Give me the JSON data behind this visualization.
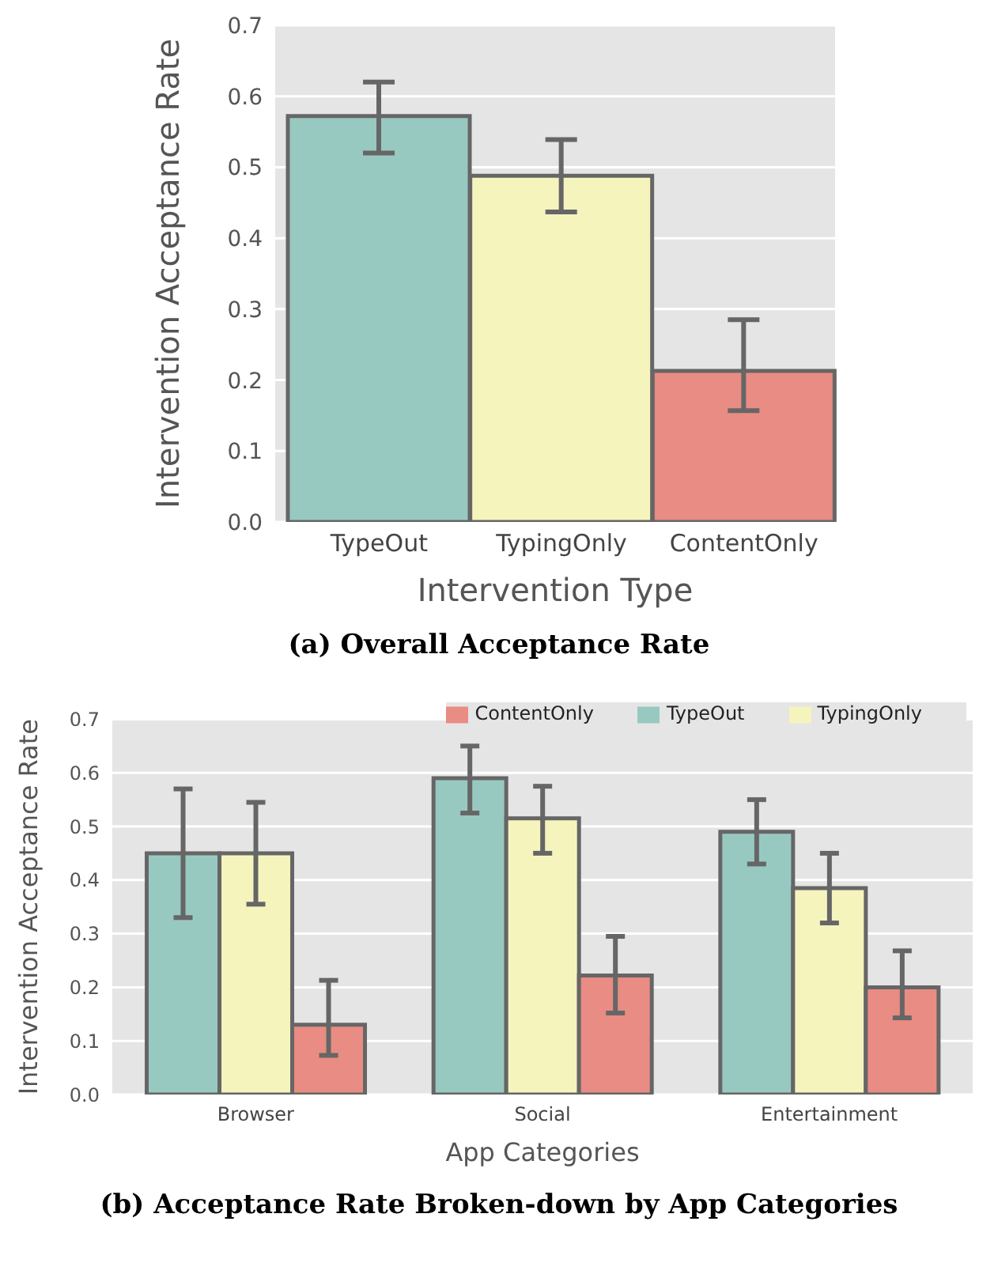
{
  "chart_data": [
    {
      "type": "bar",
      "xlabel": "Intervention Type",
      "ylabel": "Intervention Acceptance Rate",
      "categories": [
        "TypeOut",
        "TypingOnly",
        "ContentOnly"
      ],
      "values": [
        0.572,
        0.488,
        0.213
      ],
      "colors": [
        "#98c9c1",
        "#f5f4bd",
        "#e98c83"
      ],
      "errors": [
        [
          0.52,
          0.62
        ],
        [
          0.437,
          0.539
        ],
        [
          0.157,
          0.285
        ]
      ],
      "ylim": [
        0,
        0.7
      ],
      "yticks": [
        {
          "value": 0,
          "label": "0.0"
        },
        0.1,
        0.2,
        0.3,
        0.4,
        0.5,
        0.6,
        0.7
      ],
      "grid": "y",
      "legend": false,
      "annotations": [
        "(a) Overall Acceptance Rate"
      ]
    },
    {
      "type": "bar",
      "xlabel": "App Categories",
      "ylabel": "Intervention Acceptance Rate",
      "categories": [
        "Browser",
        "Social",
        "Entertainment"
      ],
      "series": [
        {
          "name": "TypeOut",
          "color": "#98c9c1",
          "values": [
            0.45,
            0.59,
            0.49
          ],
          "errors": [
            [
              0.33,
              0.57
            ],
            [
              0.525,
              0.65
            ],
            [
              0.43,
              0.55
            ]
          ]
        },
        {
          "name": "TypingOnly",
          "color": "#f5f4bd",
          "values": [
            0.45,
            0.515,
            0.385
          ],
          "errors": [
            [
              0.355,
              0.545
            ],
            [
              0.45,
              0.575
            ],
            [
              0.32,
              0.45
            ]
          ]
        },
        {
          "name": "ContentOnly",
          "color": "#e98c83",
          "values": [
            0.13,
            0.222,
            0.2
          ],
          "errors": [
            [
              0.073,
              0.213
            ],
            [
              0.152,
              0.295
            ],
            [
              0.143,
              0.268
            ]
          ]
        }
      ],
      "ylim": [
        0,
        0.7
      ],
      "yticks": [
        {
          "value": 0,
          "label": "0.0"
        },
        0.1,
        0.2,
        0.3,
        0.4,
        0.5,
        0.6,
        0.7
      ],
      "grid": "y",
      "legend": "top right",
      "annotations": [
        "(b) Acceptance Rate Broken-down by App Categories"
      ]
    }
  ]
}
